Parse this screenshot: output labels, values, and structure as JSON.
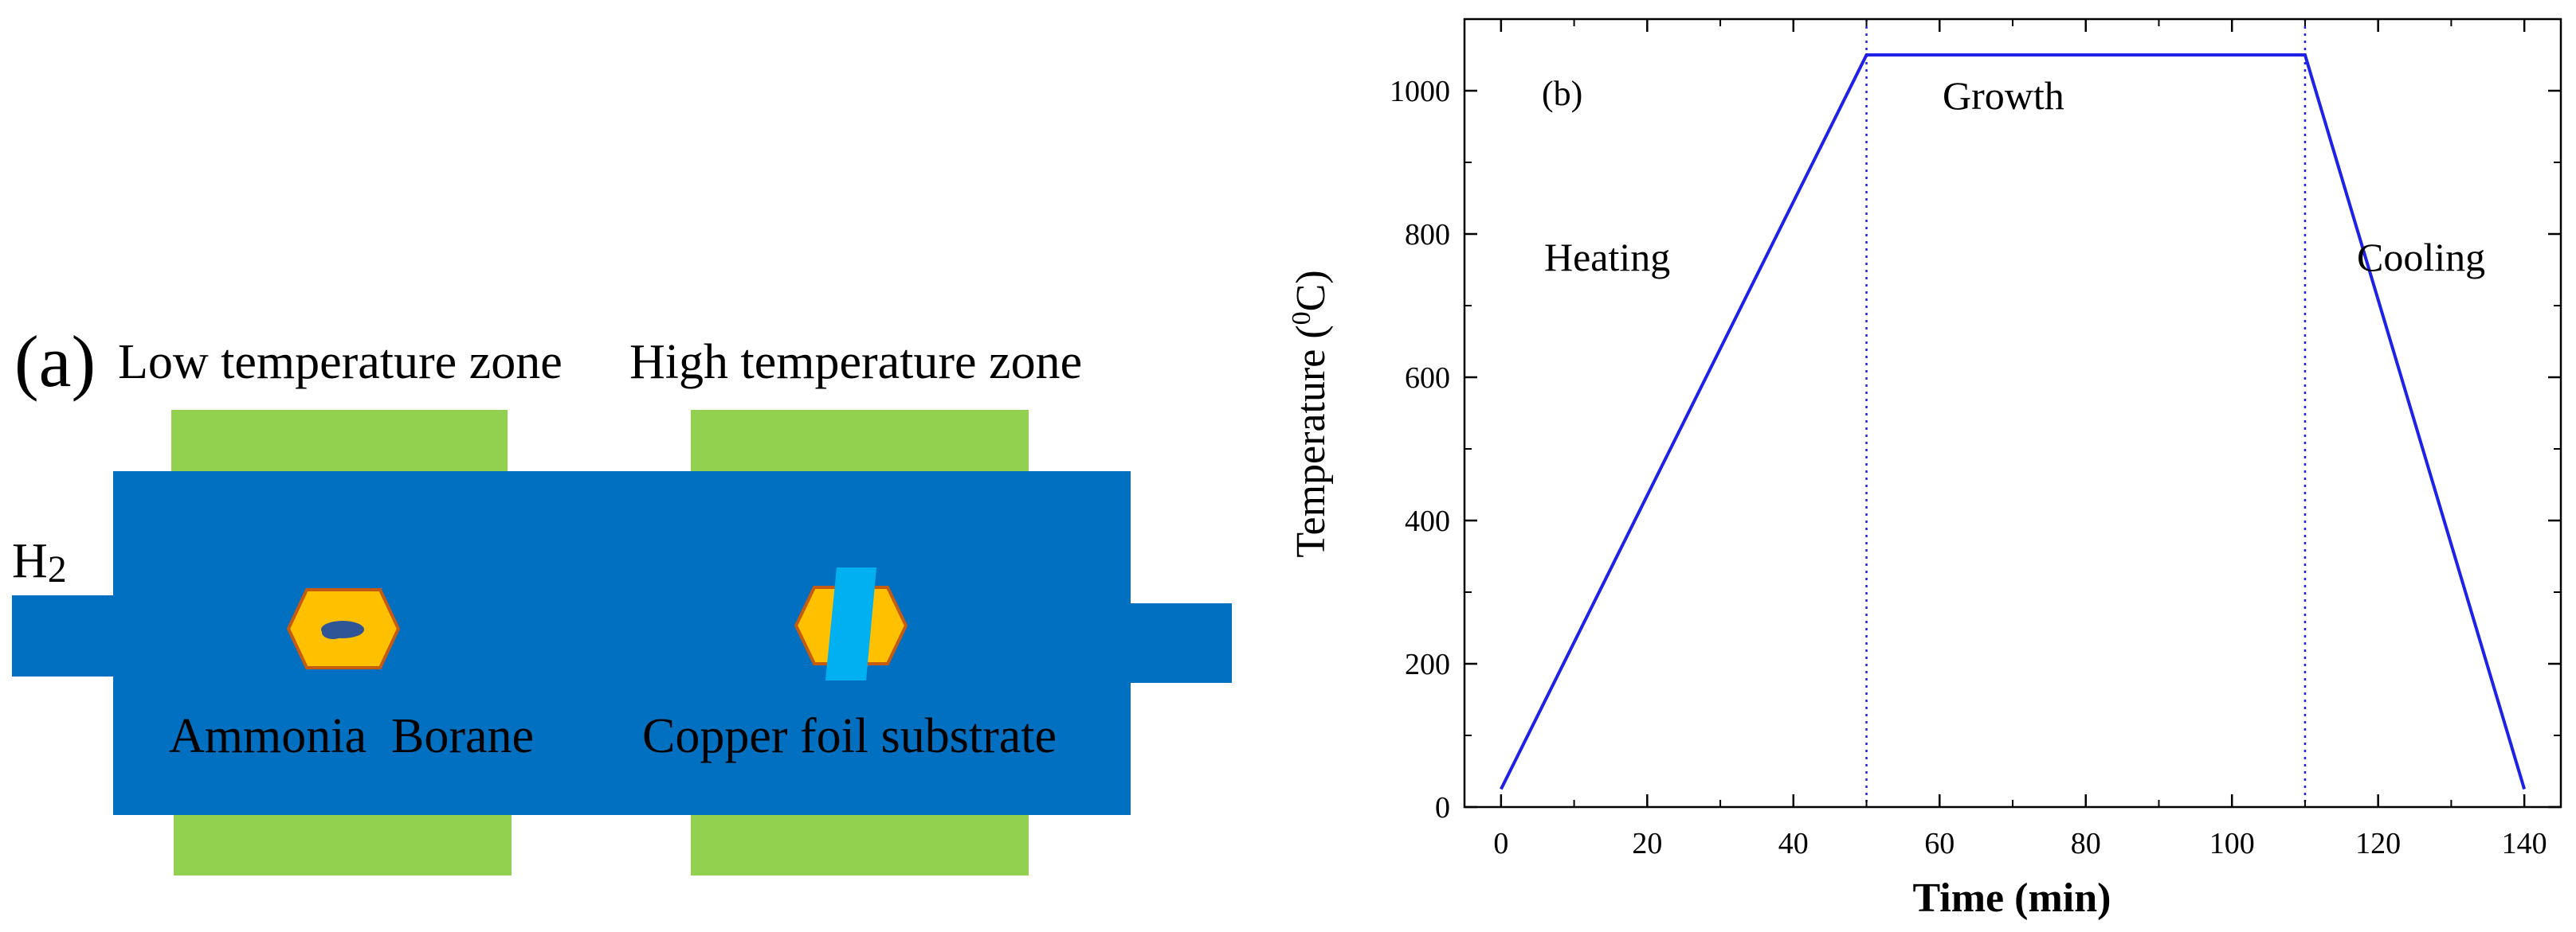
{
  "panel_a": {
    "panel_label": "(a)",
    "low_zone_label": "Low temperature zone",
    "high_zone_label": "High temperature zone",
    "gas_label_main": "H",
    "gas_label_sub": "2",
    "precursor_label": "Ammonia  Borane",
    "substrate_label": "Copper foil substrate",
    "colors": {
      "tube": "#0170C1",
      "heater": "#92D050",
      "boat": "#FFC000",
      "boat_outline": "#C55A11",
      "precursor_powder": "#2F5597",
      "copper_foil": "#00B0F0"
    }
  },
  "panel_b": {
    "panel_label": "(b)",
    "phases": {
      "heating": "Heating",
      "growth": "Growth",
      "cooling": "Cooling"
    },
    "line_color": "#1E22E6",
    "chart_data": {
      "type": "line",
      "xlabel": "Time (min)",
      "ylabel_main": "Temperature (",
      "ylabel_sup": "0",
      "ylabel_end": "C)",
      "xlim": [
        -5,
        145
      ],
      "ylim": [
        0,
        1100
      ],
      "x_ticks": [
        0,
        20,
        40,
        60,
        80,
        100,
        120,
        140
      ],
      "y_ticks": [
        0,
        200,
        400,
        600,
        800,
        1000
      ],
      "x_tick_labels": [
        "0",
        "20",
        "40",
        "60",
        "80",
        "100",
        "120",
        "140"
      ],
      "y_tick_labels": [
        "0",
        "200",
        "400",
        "600",
        "800",
        "1000"
      ],
      "series": [
        {
          "x": [
            0,
            50,
            110,
            140
          ],
          "y": [
            25,
            1050,
            1050,
            25
          ]
        }
      ],
      "vlines": [
        50,
        110
      ]
    }
  }
}
